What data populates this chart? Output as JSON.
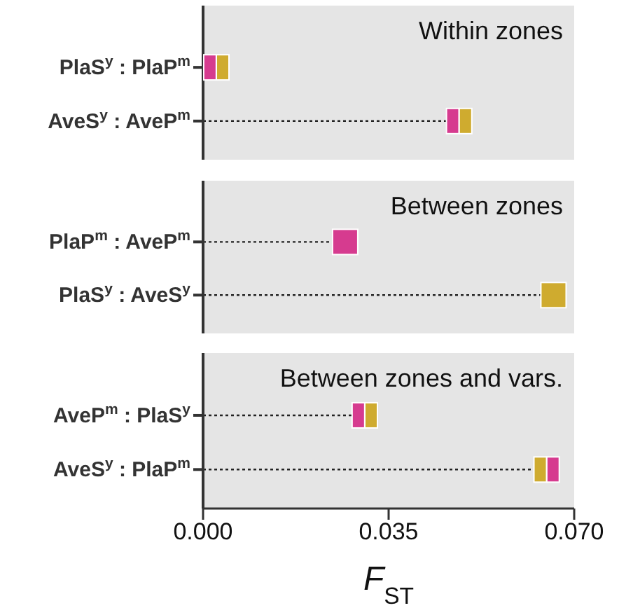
{
  "chart_data": [
    {
      "type": "lollipop",
      "title": "Within zones",
      "orientation": "horizontal",
      "line_style": "dotted",
      "tick_labels": "y",
      "xlim": [
        0,
        0.07
      ],
      "categories": [
        "PlaS$^{y}$ : PlaP$^{m}$",
        "AveS$^{y}$ : AveP$^{m}$"
      ],
      "series": [
        {
          "color": "#d63b8f",
          "values": [
            0.0013,
            0.0471
          ]
        },
        {
          "color": "#cfab2f",
          "values": [
            0.0037,
            0.0495
          ]
        }
      ]
    },
    {
      "type": "lollipop",
      "title": "Between zones",
      "orientation": "horizontal",
      "line_style": "dotted",
      "tick_labels": "y",
      "xlim": [
        0,
        0.07
      ],
      "categories": [
        "PlaP$^{m}$ : AveP$^{m}$",
        "PlaS$^{y}$ : AveS$^{y}$"
      ],
      "series": [
        {
          "color": "#d63b8f",
          "values": [
            0.0268,
            null
          ]
        },
        {
          "color": "#cfab2f",
          "values": [
            null,
            0.0661
          ]
        }
      ]
    },
    {
      "type": "lollipop",
      "title": "Between zones and vars.",
      "xlabel": "F$_{ST}$",
      "orientation": "horizontal",
      "line_style": "dotted",
      "xlim": [
        0,
        0.07
      ],
      "xticks": [
        {
          "value": 0,
          "label": "0.000"
        },
        {
          "value": 0.035,
          "label": "0.035"
        },
        {
          "value": 0.07,
          "label": "0.070"
        }
      ],
      "categories": [
        "AveP$^{m}$ : PlaS$^{y}$",
        "AveS$^{y}$ : PlaP$^{m}$"
      ],
      "series": [
        {
          "color": "#d63b8f",
          "values": [
            0.0293,
            0.066
          ]
        },
        {
          "color": "#cfab2f",
          "values": [
            0.0317,
            0.0636
          ]
        }
      ]
    }
  ]
}
